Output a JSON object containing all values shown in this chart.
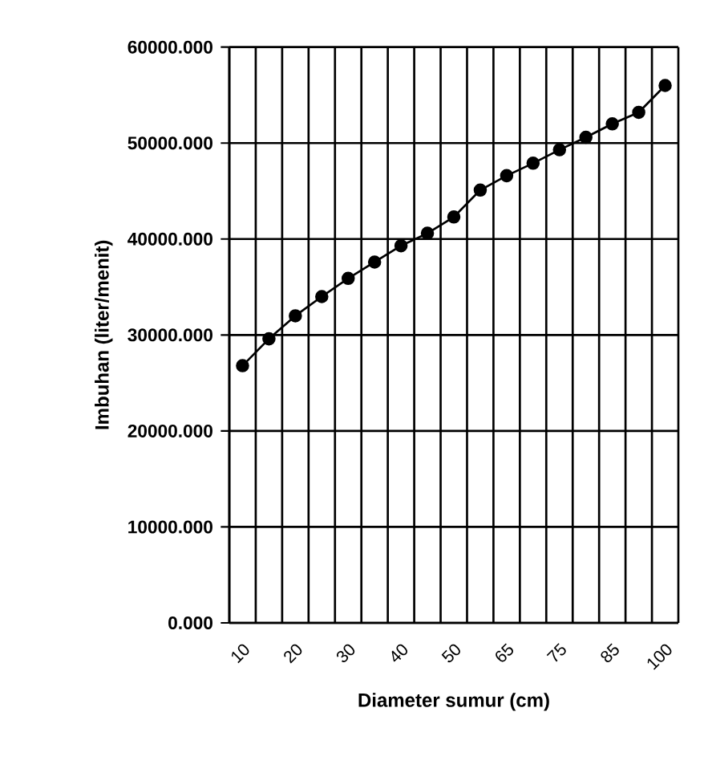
{
  "chart_data": {
    "type": "line",
    "xlabel": "Diameter sumur (cm)",
    "ylabel": "Imbuhan (liter/menit)",
    "categories": [
      "10",
      null,
      "20",
      null,
      "30",
      null,
      "40",
      null,
      "50",
      null,
      "65",
      null,
      "75",
      null,
      "85",
      null,
      "100"
    ],
    "series": [
      {
        "color": "#000000",
        "values": [
          26800,
          29600,
          32000,
          34000,
          35900,
          37600,
          39300,
          40600,
          42300,
          45100,
          46600,
          47900,
          49300,
          50600,
          52000,
          53200,
          56000
        ]
      }
    ],
    "ylim": [
      0,
      60000
    ],
    "yticks": [
      {
        "value": 0,
        "label": "0.000"
      },
      {
        "value": 10000,
        "label": "10000.000"
      },
      {
        "value": 20000,
        "label": "20000.000"
      },
      {
        "value": 30000,
        "label": "30000.000"
      },
      {
        "value": 40000,
        "label": "40000.000"
      },
      {
        "value": 50000,
        "label": "50000.000"
      },
      {
        "value": 60000,
        "label": "60000.000"
      }
    ],
    "grid": true,
    "marker": "circle",
    "line_style": "solid"
  }
}
